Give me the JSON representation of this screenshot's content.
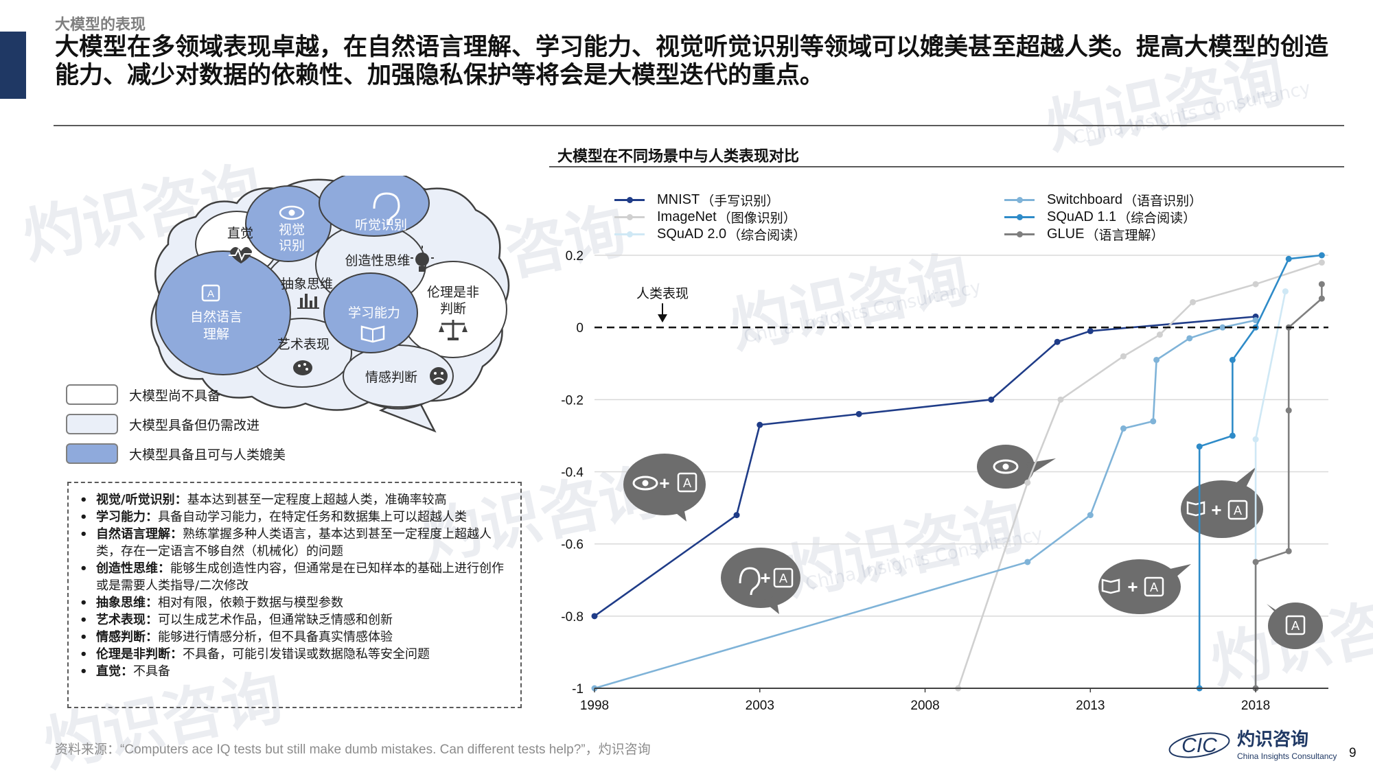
{
  "section_label": "大模型的表现",
  "headline": "大模型在多领域表现卓越，在自然语言理解、学习能力、视觉听觉识别等领域可以媲美甚至超越人类。提高大模型的创造能力、减少对数据的依赖性、加强隐私保护等将会是大模型迭代的重点。",
  "watermark": {
    "cn": "灼识咨询",
    "en": "China Insights Consultancy",
    "logo": "CIC"
  },
  "colors": {
    "accent": "#1f3864",
    "mnist": "#1f3c88",
    "imagenet": "#d0d0d0",
    "squad2": "#cfe8f5",
    "switchboard": "#7fb3d8",
    "squad11": "#2e8bc8",
    "glue": "#7f7f7f",
    "bubble_dark": "#6d6d6d",
    "lobe_filled": "#8faadc"
  },
  "diagram": {
    "lobes": {
      "intuition": "直觉",
      "visual_1": "视觉",
      "visual_2": "识别",
      "auditory": "听觉识别",
      "creative": "创造性思维",
      "abstract": "抽象思维",
      "ethics_1": "伦理是非",
      "ethics_2": "判断",
      "nlp_1": "自然语言",
      "nlp_2": "理解",
      "learning": "学习能力",
      "art": "艺术表现",
      "emotion": "情感判断"
    },
    "key": [
      {
        "label": "大模型尚不具备",
        "fill": "#ffffff"
      },
      {
        "label": "大模型具备但仍需改进",
        "fill": "#eaeff8"
      },
      {
        "label": "大模型具备且可与人类媲美",
        "fill": "#8faadc"
      }
    ]
  },
  "notes": [
    {
      "key": "视觉/听觉识别：",
      "text": "基本达到甚至一定程度上超越人类，准确率较高"
    },
    {
      "key": "学习能力：",
      "text": "具备自动学习能力，在特定任务和数据集上可以超越人类"
    },
    {
      "key": "自然语言理解：",
      "text": "熟练掌握多种人类语言，基本达到甚至一定程度上超越人类，存在一定语言不够自然（机械化）的问题"
    },
    {
      "key": "创造性思维：",
      "text": "能够生成创造性内容，但通常是在已知样本的基础上进行创作或是需要人类指导/二次修改"
    },
    {
      "key": "抽象思维：",
      "text": "相对有限，依赖于数据与模型参数"
    },
    {
      "key": "艺术表现：",
      "text": "可以生成艺术作品，但通常缺乏情感和创新"
    },
    {
      "key": "情感判断：",
      "text": "能够进行情感分析，但不具备真实情感体验"
    },
    {
      "key": "伦理是非判断：",
      "text": "不具备，可能引发错误或数据隐私等安全问题"
    },
    {
      "key": "直觉：",
      "text": "不具备"
    }
  ],
  "source": {
    "prefix": "资料来源：",
    "en": "“Computers ace IQ tests but still make dumb mistakes. Can different tests help?”",
    "suffix": "，灼识咨询"
  },
  "brand": {
    "logo": "CIC",
    "cn": "灼识咨询",
    "en": "China Insights Consultancy"
  },
  "page_number": "9",
  "chart_data": {
    "type": "line",
    "title": "大模型在不同场景中与人类表现对比",
    "xlabel": "",
    "ylabel": "",
    "xlim": [
      1998,
      2020.2
    ],
    "ylim": [
      -1,
      0.2
    ],
    "x_ticks": [
      1998,
      2003,
      2008,
      2013,
      2018
    ],
    "y_ticks": [
      0.2,
      0,
      -0.2,
      -0.4,
      -0.6,
      -0.8,
      -1
    ],
    "y_tick_labels": [
      "0.2",
      "0",
      "-0.2",
      "-0.4",
      "-0.6",
      "-0.8",
      "-1"
    ],
    "reference_line": {
      "y": 0,
      "label": "人类表现"
    },
    "grid": "horizontal",
    "legend_position": "top",
    "series": [
      {
        "name": "MNIST",
        "name_cn": "（手写识别）",
        "color": "#1f3c88",
        "points": [
          [
            1998,
            -0.8
          ],
          [
            2002.3,
            -0.52
          ],
          [
            2003,
            -0.27
          ],
          [
            2006,
            -0.24
          ],
          [
            2010,
            -0.2
          ],
          [
            2012,
            -0.04
          ],
          [
            2013,
            -0.01
          ],
          [
            2018,
            0.03
          ]
        ]
      },
      {
        "name": "ImageNet",
        "name_cn": "（图像识别）",
        "color": "#d0d0d0",
        "points": [
          [
            2009,
            -1
          ],
          [
            2011.1,
            -0.43
          ],
          [
            2012.1,
            -0.2
          ],
          [
            2014,
            -0.08
          ],
          [
            2015.1,
            -0.02
          ],
          [
            2016.1,
            0.07
          ],
          [
            2018,
            0.12
          ],
          [
            2020,
            0.18
          ]
        ]
      },
      {
        "name": "SQuAD 2.0",
        "name_cn": "（综合阅读）",
        "color": "#cfe8f5",
        "points": [
          [
            2018,
            -1
          ],
          [
            2018,
            -0.31
          ],
          [
            2018.9,
            0.1
          ]
        ]
      },
      {
        "name": "Switchboard",
        "name_cn": "（语音识别）",
        "color": "#7fb3d8",
        "points": [
          [
            1998,
            -1
          ],
          [
            2011.1,
            -0.65
          ],
          [
            2013,
            -0.52
          ],
          [
            2014,
            -0.28
          ],
          [
            2014.9,
            -0.26
          ],
          [
            2015,
            -0.09
          ],
          [
            2016,
            -0.03
          ],
          [
            2017,
            0
          ],
          [
            2018,
            0.02
          ]
        ]
      },
      {
        "name": "SQuAD 1.1",
        "name_cn": "（综合阅读）",
        "color": "#2e8bc8",
        "points": [
          [
            2016.3,
            -1
          ],
          [
            2016.3,
            -0.33
          ],
          [
            2017.3,
            -0.3
          ],
          [
            2017.3,
            -0.09
          ],
          [
            2018,
            0
          ],
          [
            2019,
            0.19
          ],
          [
            2020,
            0.2
          ]
        ]
      },
      {
        "name": "GLUE",
        "name_cn": "（语言理解）",
        "color": "#7f7f7f",
        "points": [
          [
            2018,
            -1
          ],
          [
            2018,
            -0.65
          ],
          [
            2019,
            -0.62
          ],
          [
            2019,
            -0.23
          ],
          [
            2019,
            0
          ],
          [
            2020,
            0.08
          ],
          [
            2020,
            0.12
          ]
        ]
      }
    ]
  }
}
